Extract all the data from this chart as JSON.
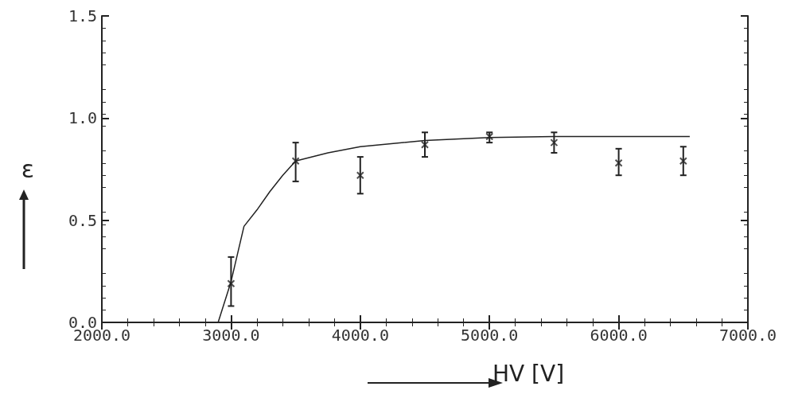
{
  "chart_data": {
    "type": "scatter",
    "xlabel": "HV [V]",
    "ylabel": "ε",
    "xlim": [
      2000,
      7000
    ],
    "xticks": [
      {
        "value": 2000,
        "label": "2000.0"
      },
      {
        "value": 3000,
        "label": "3000.0"
      },
      {
        "value": 4000,
        "label": "4000.0"
      },
      {
        "value": 5000,
        "label": "5000.0"
      },
      {
        "value": 6000,
        "label": "6000.0"
      },
      {
        "value": 7000,
        "label": "7000.0"
      }
    ],
    "ylim": [
      0,
      1.5
    ],
    "yticks": [
      {
        "value": 0,
        "label": "0.0"
      },
      {
        "value": 0.5,
        "label": "0.5"
      },
      {
        "value": 1,
        "label": "1.0"
      },
      {
        "value": 1.5,
        "label": "1.5"
      }
    ],
    "grid": false,
    "marker": "cross",
    "series": [
      {
        "color": "#222222",
        "x": [
          3000,
          3500,
          4000,
          4500,
          5000,
          5500,
          6000,
          6500
        ],
        "values": [
          0.19,
          0.79,
          0.72,
          0.87,
          0.91,
          0.88,
          0.78,
          0.79
        ],
        "errors": [
          [
            0.08,
            0.32
          ],
          [
            0.69,
            0.88
          ],
          [
            0.63,
            0.81
          ],
          [
            0.81,
            0.93
          ],
          [
            0.88,
            0.93
          ],
          [
            0.83,
            0.93
          ],
          [
            0.72,
            0.85
          ],
          [
            0.72,
            0.86
          ]
        ]
      },
      {
        "type": "line",
        "color": "#222222",
        "marker": "none",
        "line_style": "solid",
        "x": [
          2900,
          3000,
          3100,
          3200,
          3300,
          3400,
          3500,
          3750,
          4000,
          4500,
          5000,
          5500,
          6000,
          6550
        ],
        "values": [
          0,
          0.2,
          0.47,
          0.55,
          0.64,
          0.72,
          0.79,
          0.83,
          0.86,
          0.89,
          0.905,
          0.91,
          0.91,
          0.91
        ]
      }
    ]
  }
}
